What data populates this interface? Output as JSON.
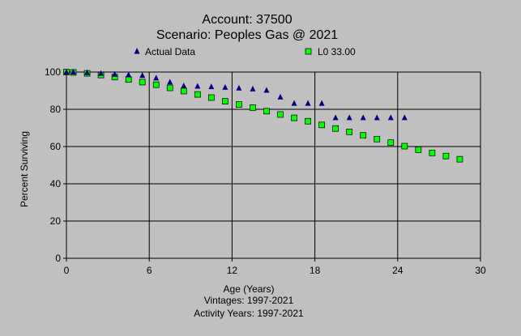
{
  "chart_data": {
    "type": "scatter",
    "title": "Account: 37500",
    "subtitle": "Scenario: Peoples Gas @ 2021",
    "xlabel": "Age (Years)",
    "ylabel": "Percent Surviving",
    "footer_lines": [
      "Vintages: 1997-2021",
      "Activity Years: 1997-2021"
    ],
    "xlim": [
      0,
      30
    ],
    "ylim": [
      0,
      100
    ],
    "x_ticks": [
      "0",
      "6",
      "12",
      "18",
      "24",
      "30"
    ],
    "y_ticks": [
      "0",
      "20",
      "40",
      "60",
      "80",
      "100"
    ],
    "grid": true,
    "legend_position": "top",
    "series": [
      {
        "name": "Actual Data",
        "marker": "triangle",
        "color": "#000080",
        "x": [
          0,
          0.5,
          1.5,
          2.5,
          3.5,
          4.5,
          5.5,
          6.5,
          7.5,
          8.5,
          9.5,
          10.5,
          11.5,
          12.5,
          13.5,
          14.5,
          15.5,
          16.5,
          17.5,
          18.5,
          19.5,
          20.5,
          21.5,
          22.5,
          23.5,
          24.5
        ],
        "y": [
          100,
          100,
          99.7,
          99.3,
          98.8,
          98.5,
          98.2,
          96.8,
          94.6,
          92.6,
          92.4,
          92.1,
          91.8,
          91.4,
          90.9,
          90.2,
          86.6,
          83.2,
          83.2,
          83.2,
          75.5,
          75.5,
          75.5,
          75.5,
          75.5,
          75.5
        ]
      },
      {
        "name": "L0 33.00",
        "marker": "square",
        "color": "#00ff00",
        "x": [
          0,
          0.5,
          1.5,
          2.5,
          3.5,
          4.5,
          5.5,
          6.5,
          7.5,
          8.5,
          9.5,
          10.5,
          11.5,
          12.5,
          13.5,
          14.5,
          15.5,
          16.5,
          17.5,
          18.5,
          19.5,
          20.5,
          21.5,
          22.5,
          23.5,
          24.5,
          25.5,
          26.5,
          27.5,
          28.5
        ],
        "y": [
          100,
          99.8,
          99.3,
          98.4,
          97.3,
          96.0,
          94.6,
          93.2,
          91.5,
          89.8,
          88.0,
          86.3,
          84.3,
          82.6,
          80.9,
          79.0,
          77.2,
          75.4,
          73.6,
          71.6,
          69.7,
          67.9,
          66.0,
          64.0,
          62.1,
          60.2,
          58.3,
          56.6,
          54.9,
          53.2
        ]
      }
    ]
  }
}
